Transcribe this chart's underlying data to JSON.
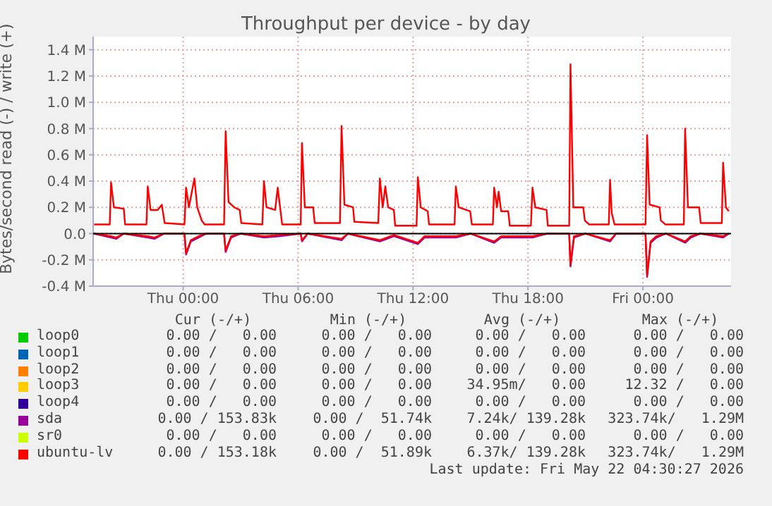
{
  "chart_data": {
    "type": "line",
    "title": "Throughput per device - by day",
    "ylabel": "Bytes/second read (-) / write (+)",
    "xlim": [
      "2026-05-20T19:18",
      "2026-05-22T04:36"
    ],
    "xticks": [
      {
        "value": "2026-05-21T00:00",
        "label": "Thu 00:00"
      },
      {
        "value": "2026-05-21T06:00",
        "label": "Thu 06:00"
      },
      {
        "value": "2026-05-21T12:00",
        "label": "Thu 12:00"
      },
      {
        "value": "2026-05-21T18:00",
        "label": "Thu 18:00"
      },
      {
        "value": "2026-05-22T00:00",
        "label": "Fri 00:00"
      }
    ],
    "ylim": [
      -0.4,
      1.5
    ],
    "yticks": [
      {
        "value": -0.4,
        "label": "-0.4 M"
      },
      {
        "value": -0.2,
        "label": "-0.2 M"
      },
      {
        "value": 0,
        "label": "0.0"
      },
      {
        "value": 0.2,
        "label": "0.2 M"
      },
      {
        "value": 0.4,
        "label": "0.4 M"
      },
      {
        "value": 0.6,
        "label": "0.6 M"
      },
      {
        "value": 0.8,
        "label": "0.8 M"
      },
      {
        "value": 1.0,
        "label": "1.0 M"
      },
      {
        "value": 1.2,
        "label": "1.2 M"
      },
      {
        "value": 1.4,
        "label": "1.4 M"
      }
    ],
    "grid": true,
    "legend": "bottom",
    "marker": "none",
    "line_style": "solid",
    "ref_lines": [
      {
        "axis": "y",
        "value": 0,
        "color": "#000000"
      }
    ],
    "series": [
      {
        "name": "loop0",
        "color": "#00cc00"
      },
      {
        "name": "loop1",
        "color": "#0066b3"
      },
      {
        "name": "loop2",
        "color": "#ff8000"
      },
      {
        "name": "loop3",
        "color": "#ffcc00"
      },
      {
        "name": "loop4",
        "color": "#330099"
      },
      {
        "name": "sda",
        "color": "#990099",
        "x": [
          "2026-05-20T19:21",
          "2026-05-20T20:14",
          "2026-05-20T20:30",
          "2026-05-20T20:54",
          "2026-05-20T22:09",
          "2026-05-20T22:30",
          "2026-05-20T23:00",
          "2026-05-21T00:04",
          "2026-05-21T00:09",
          "2026-05-21T00:24",
          "2026-05-21T00:48",
          "2026-05-21T01:12",
          "2026-05-21T02:08",
          "2026-05-21T02:13",
          "2026-05-21T02:30",
          "2026-05-21T03:00",
          "2026-05-21T04:13",
          "2026-05-21T05:00",
          "2026-05-21T06:08",
          "2026-05-21T06:12",
          "2026-05-21T06:30",
          "2026-05-21T08:16",
          "2026-05-21T08:36",
          "2026-05-21T10:16",
          "2026-05-21T11:00",
          "2026-05-21T12:15",
          "2026-05-21T12:36",
          "2026-05-21T14:14",
          "2026-05-21T15:00",
          "2026-05-21T16:14",
          "2026-05-21T16:36",
          "2026-05-21T18:14",
          "2026-05-21T19:00",
          "2026-05-21T20:09",
          "2026-05-21T20:13",
          "2026-05-21T20:24",
          "2026-05-21T21:00",
          "2026-05-21T22:17",
          "2026-05-21T22:36",
          "2026-05-22T00:08",
          "2026-05-22T00:13",
          "2026-05-22T00:24",
          "2026-05-22T00:42",
          "2026-05-22T01:12",
          "2026-05-22T02:12",
          "2026-05-22T02:30",
          "2026-05-22T03:00",
          "2026-05-22T04:11",
          "2026-05-22T04:29"
        ],
        "values": [
          0,
          -0.03,
          -0.04,
          0,
          -0.03,
          -0.04,
          0,
          0,
          -0.16,
          -0.06,
          -0.03,
          0,
          0,
          -0.14,
          -0.03,
          0,
          -0.03,
          -0.02,
          0,
          -0.06,
          0,
          -0.05,
          0,
          -0.06,
          -0.02,
          -0.08,
          -0.03,
          -0.03,
          0,
          -0.07,
          -0.03,
          -0.03,
          0,
          0,
          -0.25,
          -0.03,
          0,
          -0.06,
          0,
          0,
          -0.33,
          -0.07,
          -0.03,
          0,
          -0.07,
          -0.03,
          0,
          -0.03,
          0
        ]
      },
      {
        "name": "sr0",
        "color": "#ccff00"
      },
      {
        "name": "ubuntu-lv",
        "color": "#ff0000",
        "x": [
          "2026-05-20T19:21",
          "2026-05-20T20:10",
          "2026-05-20T20:14",
          "2026-05-20T20:23",
          "2026-05-20T20:54",
          "2026-05-20T20:58",
          "2026-05-20T22:05",
          "2026-05-20T22:09",
          "2026-05-20T22:18",
          "2026-05-20T22:40",
          "2026-05-20T22:53",
          "2026-05-20T23:02",
          "2026-05-21T00:04",
          "2026-05-21T00:09",
          "2026-05-21T00:18",
          "2026-05-21T00:35",
          "2026-05-21T00:44",
          "2026-05-21T00:58",
          "2026-05-21T01:07",
          "2026-05-21T02:08",
          "2026-05-21T02:13",
          "2026-05-21T02:22",
          "2026-05-21T02:40",
          "2026-05-21T02:57",
          "2026-05-21T03:02",
          "2026-05-21T04:08",
          "2026-05-21T04:13",
          "2026-05-21T04:21",
          "2026-05-21T04:48",
          "2026-05-21T04:56",
          "2026-05-21T05:10",
          "2026-05-21T06:08",
          "2026-05-21T06:12",
          "2026-05-21T06:21",
          "2026-05-21T06:47",
          "2026-05-21T06:52",
          "2026-05-21T08:11",
          "2026-05-21T08:16",
          "2026-05-21T08:25",
          "2026-05-21T08:52",
          "2026-05-21T08:56",
          "2026-05-21T10:11",
          "2026-05-21T10:16",
          "2026-05-21T10:25",
          "2026-05-21T10:33",
          "2026-05-21T10:42",
          "2026-05-21T11:00",
          "2026-05-21T11:04",
          "2026-05-21T12:11",
          "2026-05-21T12:15",
          "2026-05-21T12:24",
          "2026-05-21T12:46",
          "2026-05-21T12:50",
          "2026-05-21T14:10",
          "2026-05-21T14:14",
          "2026-05-21T14:23",
          "2026-05-21T14:59",
          "2026-05-21T15:04",
          "2026-05-21T16:10",
          "2026-05-21T16:14",
          "2026-05-21T16:23",
          "2026-05-21T16:28",
          "2026-05-21T16:36",
          "2026-05-21T16:58",
          "2026-05-21T17:03",
          "2026-05-21T18:09",
          "2026-05-21T18:14",
          "2026-05-21T18:23",
          "2026-05-21T18:58",
          "2026-05-21T19:02",
          "2026-05-21T20:09",
          "2026-05-21T20:13",
          "2026-05-21T20:22",
          "2026-05-21T20:53",
          "2026-05-21T20:58",
          "2026-05-21T21:11",
          "2026-05-21T22:13",
          "2026-05-21T22:17",
          "2026-05-21T22:22",
          "2026-05-21T22:31",
          "2026-05-22T00:08",
          "2026-05-22T00:13",
          "2026-05-22T00:21",
          "2026-05-22T00:52",
          "2026-05-22T00:56",
          "2026-05-22T01:10",
          "2026-05-22T02:08",
          "2026-05-22T02:12",
          "2026-05-22T02:21",
          "2026-05-22T02:56",
          "2026-05-22T03:01",
          "2026-05-22T04:07",
          "2026-05-22T04:11",
          "2026-05-22T04:20",
          "2026-05-22T04:29"
        ],
        "values": [
          0.07,
          0.07,
          0.39,
          0.2,
          0.19,
          0.07,
          0.07,
          0.36,
          0.18,
          0.18,
          0.22,
          0.08,
          0.07,
          0.35,
          0.2,
          0.42,
          0.2,
          0.1,
          0.07,
          0.07,
          0.78,
          0.24,
          0.2,
          0.18,
          0.08,
          0.07,
          0.4,
          0.2,
          0.18,
          0.35,
          0.07,
          0.07,
          0.69,
          0.2,
          0.2,
          0.08,
          0.08,
          0.82,
          0.22,
          0.2,
          0.09,
          0.08,
          0.42,
          0.2,
          0.36,
          0.2,
          0.18,
          0.06,
          0.06,
          0.43,
          0.2,
          0.17,
          0.07,
          0.07,
          0.36,
          0.2,
          0.17,
          0.07,
          0.07,
          0.35,
          0.2,
          0.32,
          0.17,
          0.17,
          0.06,
          0.06,
          0.35,
          0.2,
          0.18,
          0.06,
          0.06,
          1.29,
          0.2,
          0.2,
          0.1,
          0.07,
          0.07,
          0.41,
          0.16,
          0.07,
          0.07,
          0.75,
          0.22,
          0.2,
          0.1,
          0.07,
          0.07,
          0.8,
          0.2,
          0.2,
          0.08,
          0.08,
          0.54,
          0.2,
          0.17
        ]
      },
      {
        "color": "#ff0000",
        "x": [
          "2026-05-20T19:21",
          "2026-05-20T20:14",
          "2026-05-20T20:30",
          "2026-05-20T20:54",
          "2026-05-20T22:09",
          "2026-05-20T22:30",
          "2026-05-20T23:00",
          "2026-05-21T00:04",
          "2026-05-21T00:09",
          "2026-05-21T00:24",
          "2026-05-21T00:48",
          "2026-05-21T01:12",
          "2026-05-21T02:08",
          "2026-05-21T02:13",
          "2026-05-21T02:30",
          "2026-05-21T03:00",
          "2026-05-21T04:13",
          "2026-05-21T05:00",
          "2026-05-21T06:08",
          "2026-05-21T06:12",
          "2026-05-21T06:30",
          "2026-05-21T08:16",
          "2026-05-21T08:36",
          "2026-05-21T10:16",
          "2026-05-21T11:00",
          "2026-05-21T12:15",
          "2026-05-21T12:36",
          "2026-05-21T14:14",
          "2026-05-21T15:00",
          "2026-05-21T16:14",
          "2026-05-21T16:36",
          "2026-05-21T18:14",
          "2026-05-21T19:00",
          "2026-05-21T20:09",
          "2026-05-21T20:13",
          "2026-05-21T20:24",
          "2026-05-21T21:00",
          "2026-05-21T22:17",
          "2026-05-21T22:36",
          "2026-05-22T00:08",
          "2026-05-22T00:13",
          "2026-05-22T00:24",
          "2026-05-22T00:42",
          "2026-05-22T01:12",
          "2026-05-22T02:12",
          "2026-05-22T02:30",
          "2026-05-22T03:00",
          "2026-05-22T04:11",
          "2026-05-22T04:29"
        ],
        "values": [
          0,
          -0.02,
          -0.03,
          0,
          -0.02,
          -0.03,
          0,
          0,
          -0.15,
          -0.05,
          -0.02,
          0,
          0,
          -0.13,
          -0.02,
          0,
          -0.02,
          -0.01,
          0,
          -0.05,
          0,
          -0.04,
          0,
          -0.05,
          -0.01,
          -0.07,
          -0.02,
          -0.02,
          0,
          -0.06,
          -0.02,
          -0.02,
          0,
          0,
          -0.24,
          -0.02,
          0,
          -0.05,
          0,
          0,
          -0.32,
          -0.06,
          -0.02,
          0,
          -0.06,
          -0.02,
          0,
          -0.02,
          0
        ]
      }
    ],
    "annotations": [
      "Cur (-/+)",
      "Min (-/+)",
      "Avg (-/+)",
      "Max (-/+)",
      "0.00 /   0.00",
      "0.00 /   0.00",
      "0.00 /   0.00",
      "0.00 /   0.00",
      "0.00 /   0.00",
      "0.00 /   0.00",
      "0.00 /   0.00",
      "0.00 /   0.00",
      "0.00 /   0.00",
      "0.00 /   0.00",
      "0.00 /   0.00",
      "0.00 /   0.00",
      "0.00 /   0.00",
      "0.00 /   0.00",
      "34.95m/   0.00",
      "12.32 /   0.00",
      "0.00 /   0.00",
      "0.00 /   0.00",
      "0.00 /   0.00",
      "0.00 /   0.00",
      "0.00 / 153.83k",
      "0.00 /  51.74k",
      "7.24k/ 139.28k",
      "323.74k/   1.29M",
      "0.00 /   0.00",
      "0.00 /   0.00",
      "0.00 /   0.00",
      "0.00 /   0.00",
      "0.00 / 153.18k",
      "0.00 /  51.89k",
      "6.37k/ 139.28k",
      "323.74k/   1.29M",
      "Last update: Fri May 22 04:30:27 2026"
    ]
  }
}
